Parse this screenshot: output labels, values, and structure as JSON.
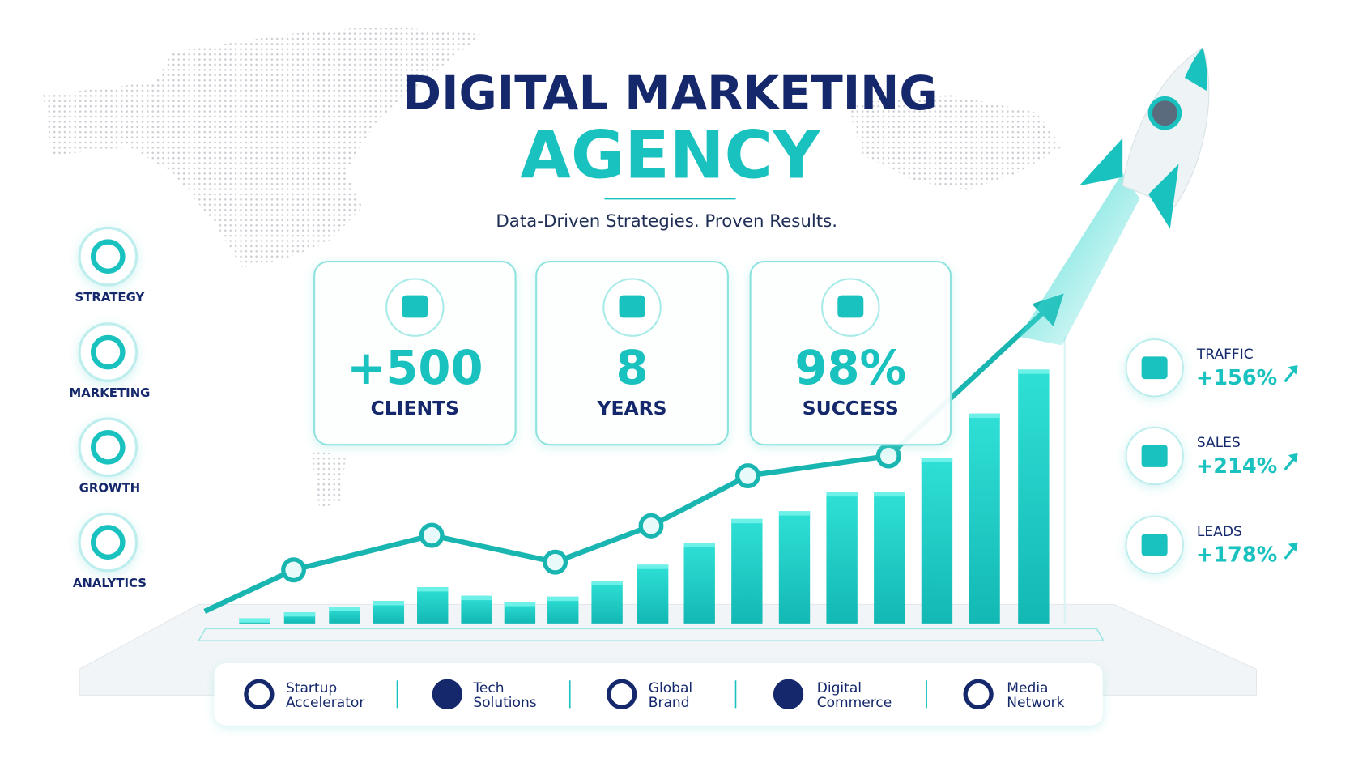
{
  "header": {
    "title": "DIGITAL MARKETING",
    "title_accent": "AGENCY",
    "subtitle": "Data-Driven Strategies. Proven Results."
  },
  "services": [
    "STRATEGY",
    "MARKETING",
    "GROWTH",
    "ANALYTICS"
  ],
  "stats": [
    {
      "value": "+500",
      "label": "CLIENTS"
    },
    {
      "value": "8",
      "label": "YEARS"
    },
    {
      "value": "98%",
      "label": "SUCCESS"
    }
  ],
  "metrics": [
    {
      "label": "TRAFFIC",
      "value": "+156%"
    },
    {
      "label": "SALES",
      "value": "+214%"
    },
    {
      "label": "LEADS",
      "value": "+178%"
    }
  ],
  "partners": [
    {
      "lines": [
        "Startup",
        "Accelerator"
      ]
    },
    {
      "lines": [
        "Tech",
        "Solutions"
      ]
    },
    {
      "lines": [
        "Global",
        "Brand"
      ]
    },
    {
      "lines": [
        "Digital",
        "Commerce"
      ]
    },
    {
      "lines": [
        "Media",
        "Network"
      ]
    }
  ]
}
